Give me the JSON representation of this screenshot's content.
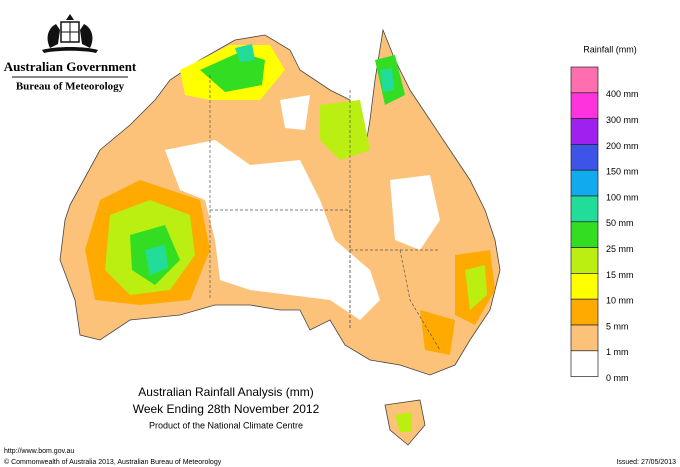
{
  "header": {
    "government": "Australian Government",
    "bureau": "Bureau of Meteorology"
  },
  "legend": {
    "title": "Rainfall (mm)",
    "items": [
      {
        "label": "400 mm",
        "color": "#ff6fb0"
      },
      {
        "label": "300 mm",
        "color": "#ff33dd"
      },
      {
        "label": "200 mm",
        "color": "#a020f0"
      },
      {
        "label": "150 mm",
        "color": "#3d54e8"
      },
      {
        "label": "100 mm",
        "color": "#11aaee"
      },
      {
        "label": "50 mm",
        "color": "#22dd99"
      },
      {
        "label": "25 mm",
        "color": "#33dd22"
      },
      {
        "label": "15 mm",
        "color": "#bbee11"
      },
      {
        "label": "10 mm",
        "color": "#ffff00"
      },
      {
        "label": "5 mm",
        "color": "#ffaa00"
      },
      {
        "label": "1 mm",
        "color": "#fcc27a"
      },
      {
        "label": "0 mm",
        "color": "#ffffff"
      }
    ]
  },
  "caption": {
    "title": "Australian Rainfall Analysis (mm)",
    "subtitle": "Week Ending 28th November 2012",
    "credit": "Product of the National Climate Centre"
  },
  "footer": {
    "url": "http://www.bom.gov.au",
    "copyright": "© Commonwealth of Australia 2013, Australian Bureau of Meteorology",
    "issued": "Issued: 27/05/2013"
  }
}
